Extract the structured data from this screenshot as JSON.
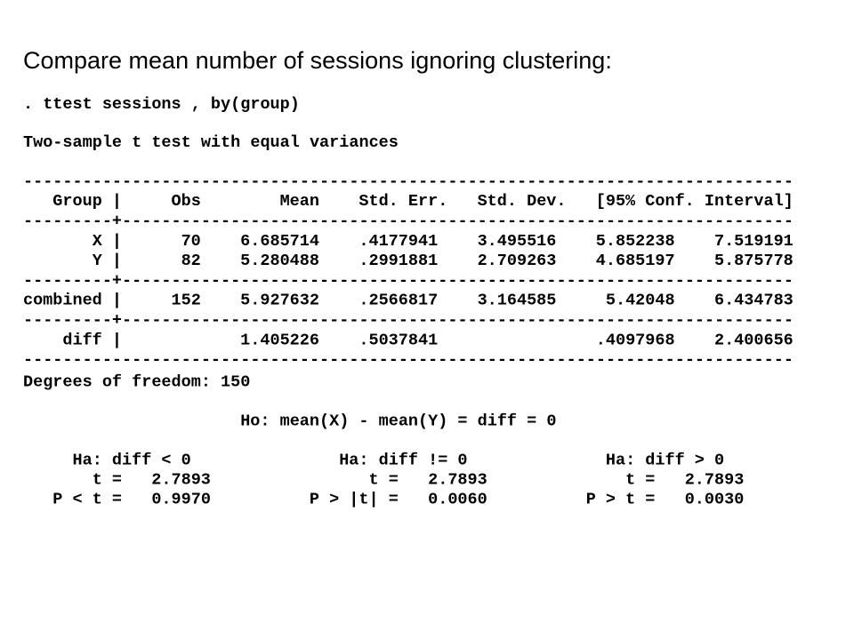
{
  "title": "Compare mean number of sessions ignoring clustering:",
  "command": ". ttest sessions , by(group)",
  "test_title": "Two-sample t test with equal variances",
  "table": {
    "rule": "------------------------------------------------------------------------------",
    "divider": "---------+--------------------------------------------------------------------",
    "pipe": "|",
    "header": {
      "label": "Group",
      "obs": "Obs",
      "mean": "Mean",
      "se": "Std. Err.",
      "sd": "Std. Dev.",
      "ci": "[95% Conf. Interval]"
    },
    "groups": [
      [
        {
          "label": "X",
          "obs": "70",
          "mean": "6.685714",
          "se": ".4177941",
          "sd": "3.495516",
          "ci_low": "5.852238",
          "ci_high": "7.519191"
        },
        {
          "label": "Y",
          "obs": "82",
          "mean": "5.280488",
          "se": ".2991881",
          "sd": "2.709263",
          "ci_low": "4.685197",
          "ci_high": "5.875778"
        }
      ],
      [
        {
          "label": "combined",
          "obs": "152",
          "mean": "5.927632",
          "se": ".2566817",
          "sd": "3.164585",
          "ci_low": "5.42048",
          "ci_high": "6.434783"
        }
      ],
      [
        {
          "label": "diff",
          "mean": "1.405226",
          "se": ".5037841",
          "ci_low": ".4097968",
          "ci_high": "2.400656"
        }
      ]
    ]
  },
  "dof": "Degrees of freedom: 150",
  "ho": "Ho: mean(X) - mean(Y) = diff = 0",
  "alternatives": [
    {
      "ha": "Ha: diff < 0",
      "t": "t =   2.7893",
      "p": "P < t =   0.9970"
    },
    {
      "ha": "Ha: diff != 0",
      "t": "t =   2.7893",
      "p": "P > |t| =   0.0060"
    },
    {
      "ha": "Ha: diff > 0",
      "t": "t =   2.7893",
      "p": "P > t =   0.0030"
    }
  ]
}
